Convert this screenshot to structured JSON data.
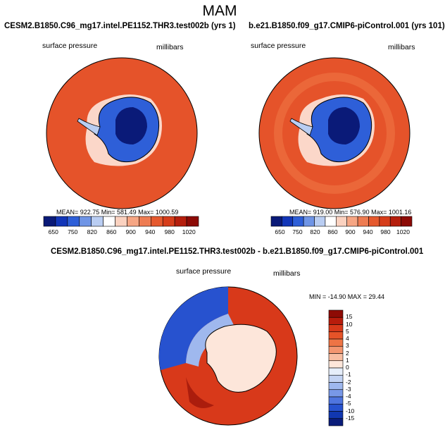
{
  "season": "MAM",
  "panels": {
    "left": {
      "case": "CESM2.B1850.C96_mg17.intel.PE1152.THR3.test002b (yrs 1)",
      "variable": "surface pressure",
      "units": "millibars",
      "stats": "MEAN= 922.75  Min= 581.49  Max= 1000.59"
    },
    "right": {
      "case": "b.e21.B1850.f09_g17.CMIP6-piControl.001 (yrs 101)",
      "variable": "surface pressure",
      "units": "millibars",
      "stats": "MEAN= 919.00  Min= 576.90  Max= 1001.16"
    },
    "diff": {
      "case": "CESM2.B1850.C96_mg17.intel.PE1152.THR3.test002b - b.e21.B1850.f09_g17.CMIP6-piControl.001",
      "variable": "surface pressure",
      "units": "millibars",
      "stats": "MIN = -14.90 MAX =  29.44"
    }
  },
  "colorbar_abs": {
    "labels": [
      "650",
      "750",
      "820",
      "860",
      "900",
      "940",
      "980",
      "1020"
    ],
    "colors": [
      "#0a1a78",
      "#1236b8",
      "#2e5fd8",
      "#6f95e6",
      "#b9cdf2",
      "#ffffff",
      "#fbd2c0",
      "#f6a684",
      "#ee7c52",
      "#e5592e",
      "#d63d1a",
      "#b51e0c",
      "#8c0a05"
    ]
  },
  "colorbar_diff": {
    "labels": [
      "15",
      "10",
      "5",
      "4",
      "3",
      "2",
      "1",
      "0",
      "-1",
      "-2",
      "-3",
      "-4",
      "-5",
      "-10",
      "-15"
    ],
    "colors": [
      "#8e0b05",
      "#b81c0c",
      "#d8391a",
      "#e65328",
      "#ee7445",
      "#f39670",
      "#f8bea2",
      "#fde6da",
      "#e6eefa",
      "#c3d3f3",
      "#9fb8ee",
      "#7898e7",
      "#4f75df",
      "#2752cf",
      "#1137b0",
      "#0a1c7a"
    ]
  }
}
